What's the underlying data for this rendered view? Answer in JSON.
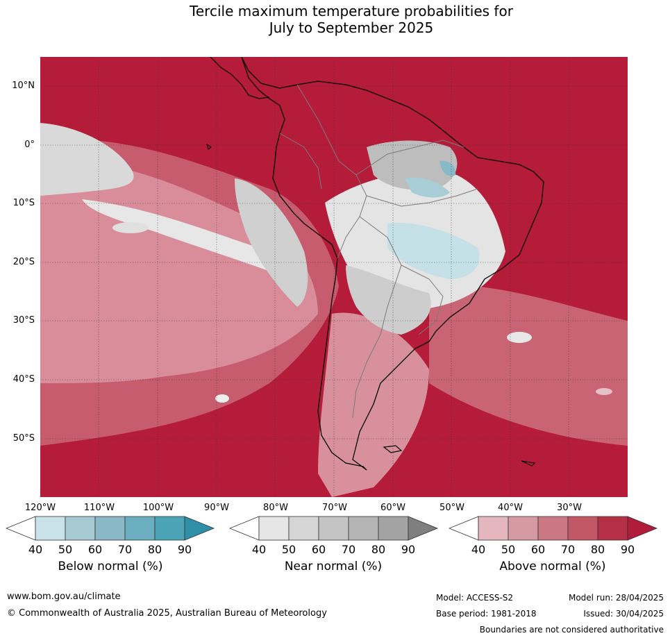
{
  "title_line1": "Tercile maximum temperature probabilities for",
  "title_line2": "July to September 2025",
  "lat_labels": [
    "10°N",
    "0°",
    "10°S",
    "20°S",
    "30°S",
    "40°S",
    "50°S"
  ],
  "lon_labels": [
    "120°W",
    "110°W",
    "100°W",
    "90°W",
    "80°W",
    "70°W",
    "60°W",
    "50°W",
    "40°W",
    "30°W"
  ],
  "colorbars": [
    {
      "label": "Below normal (%)",
      "ticks": [
        "40",
        "50",
        "60",
        "70",
        "80",
        "90"
      ],
      "colors": [
        "#ffffff",
        "#c9e1e8",
        "#a6c9d2",
        "#8ab8c5",
        "#6aaebf",
        "#4ba4b6",
        "#2e8fa6"
      ]
    },
    {
      "label": "Near normal (%)",
      "ticks": [
        "40",
        "50",
        "60",
        "70",
        "80",
        "90"
      ],
      "colors": [
        "#ffffff",
        "#e6e6e6",
        "#d5d5d5",
        "#c4c4c4",
        "#b4b4b4",
        "#a3a3a3",
        "#7f7f7f"
      ]
    },
    {
      "label": "Above normal (%)",
      "ticks": [
        "40",
        "50",
        "60",
        "70",
        "80",
        "90"
      ],
      "colors": [
        "#ffffff",
        "#e3b7bd",
        "#d69aa3",
        "#cc7784",
        "#c25766",
        "#b52f47",
        "#b01c3a"
      ]
    }
  ],
  "footer": {
    "website": "www.bom.gov.au/climate",
    "copyright": "© Commonwealth of Australia 2025, Australian Bureau of Meteorology",
    "model": "Model: ACCESS-S2",
    "model_run": "Model run: 28/04/2025",
    "base_period": "Base period: 1981-2018",
    "issued": "Issued: 30/04/2025",
    "disclaimer": "Boundaries are not considered authoritative"
  }
}
